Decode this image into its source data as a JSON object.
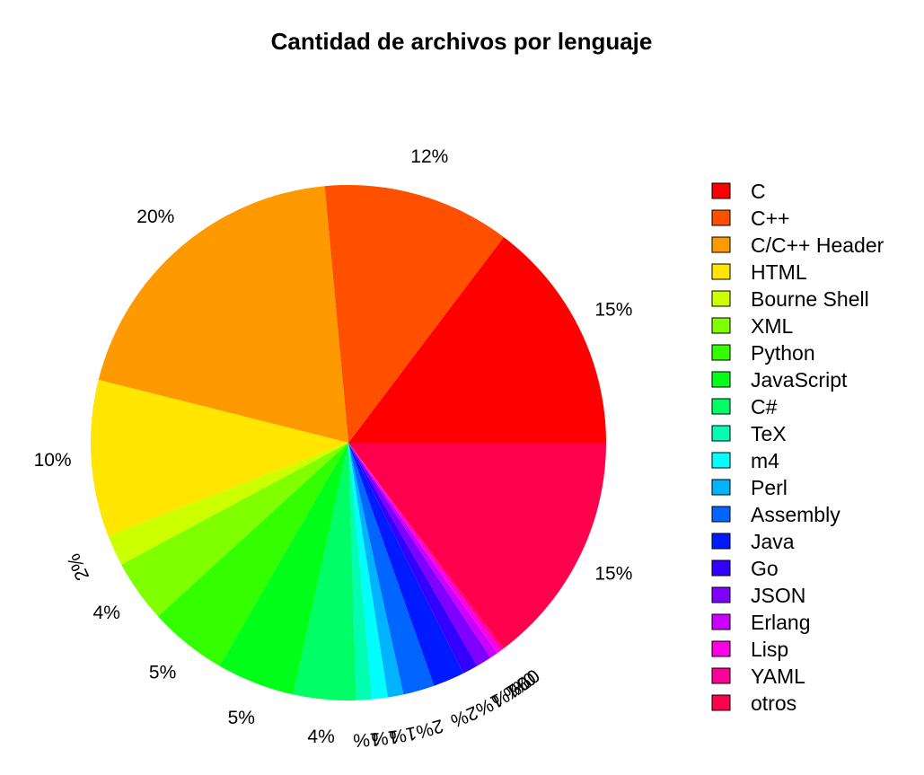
{
  "chart_data": {
    "type": "pie",
    "title": "Cantidad de archivos por lenguaje",
    "legend_position": "right",
    "slices": [
      {
        "name": "C",
        "percent": 15,
        "label": "15%",
        "color": "#FF0000"
      },
      {
        "name": "C++",
        "percent": 12,
        "label": "12%",
        "color": "#FF5000"
      },
      {
        "name": "C/C++ Header",
        "percent": 20,
        "label": "20%",
        "color": "#FF9900"
      },
      {
        "name": "HTML",
        "percent": 10,
        "label": "10%",
        "color": "#FFE500"
      },
      {
        "name": "Bourne Shell",
        "percent": 2,
        "label": "2%",
        "color": "#CCFF00"
      },
      {
        "name": "XML",
        "percent": 4,
        "label": "4%",
        "color": "#80FF00"
      },
      {
        "name": "Python",
        "percent": 5,
        "label": "5%",
        "color": "#33FF00"
      },
      {
        "name": "JavaScript",
        "percent": 5,
        "label": "5%",
        "color": "#00FF19"
      },
      {
        "name": "C#",
        "percent": 4,
        "label": "4%",
        "color": "#00FF66"
      },
      {
        "name": "TeX",
        "percent": 1,
        "label": "1%",
        "color": "#00FFB2"
      },
      {
        "name": "m4",
        "percent": 1,
        "label": "1%",
        "color": "#00FFFF"
      },
      {
        "name": "Perl",
        "percent": 1,
        "label": "1%",
        "color": "#00B3FF"
      },
      {
        "name": "Assembly",
        "percent": 2,
        "label": "2%",
        "color": "#0066FF"
      },
      {
        "name": "Java",
        "percent": 2,
        "label": "2%",
        "color": "#001AFF"
      },
      {
        "name": "Go",
        "percent": 1,
        "label": "1%",
        "color": "#3300FF"
      },
      {
        "name": "JSON",
        "percent": 1,
        "label": "1%",
        "color": "#7F00FF"
      },
      {
        "name": "Erlang",
        "percent": 0.5,
        "label": "0%",
        "color": "#CC00FF"
      },
      {
        "name": "Lisp",
        "percent": 0.3,
        "label": "0%",
        "color": "#FF00E6"
      },
      {
        "name": "YAML",
        "percent": 0.2,
        "label": "0%",
        "color": "#FF0099"
      },
      {
        "name": "otros",
        "percent": 15,
        "label": "15%",
        "color": "#FF004D"
      }
    ]
  }
}
